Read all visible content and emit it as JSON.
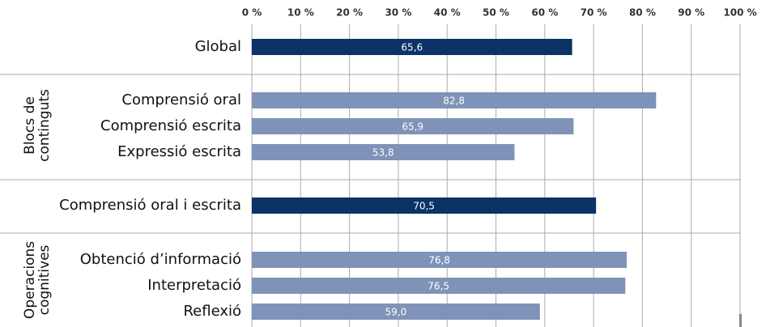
{
  "chart_data": {
    "type": "hbar",
    "categories": [
      "Global",
      "Comprensió oral",
      "Comprensió escrita",
      "Expressió escrita",
      "Comprensió oral i escrita",
      "Obtenció d’informació",
      "Interpretació",
      "Reflexió"
    ],
    "values": [
      65.6,
      82.8,
      65.9,
      53.8,
      70.5,
      76.8,
      76.5,
      59.0
    ],
    "value_labels": [
      "65,6",
      "82,8",
      "65,9",
      "53,8",
      "70,5",
      "76,8",
      "76,5",
      "59,0"
    ],
    "colors": [
      "#0b3366",
      "#7f93b8",
      "#7f93b8",
      "#7f93b8",
      "#0b3366",
      "#7f93b8",
      "#7f93b8",
      "#7f93b8"
    ],
    "groups": [
      {
        "label": [
          "Blocs de",
          "continguts"
        ]
      },
      {
        "label": [
          "Operacions",
          "cognitives"
        ]
      }
    ],
    "xlim": [
      0,
      100
    ],
    "xticks": [
      {
        "value": 0,
        "label": "0 %"
      },
      {
        "value": 10,
        "label": "10 %"
      },
      {
        "value": 20,
        "label": "20 %"
      },
      {
        "value": 30,
        "label": "30 %"
      },
      {
        "value": 40,
        "label": "40 %"
      },
      {
        "value": 50,
        "label": "50 %"
      },
      {
        "value": 60,
        "label": "60 %"
      },
      {
        "value": 70,
        "label": "70 %"
      },
      {
        "value": 80,
        "label": "80 %"
      },
      {
        "value": 90,
        "label": "90 %"
      },
      {
        "value": 100,
        "label": "100 %"
      }
    ],
    "grid": true
  }
}
